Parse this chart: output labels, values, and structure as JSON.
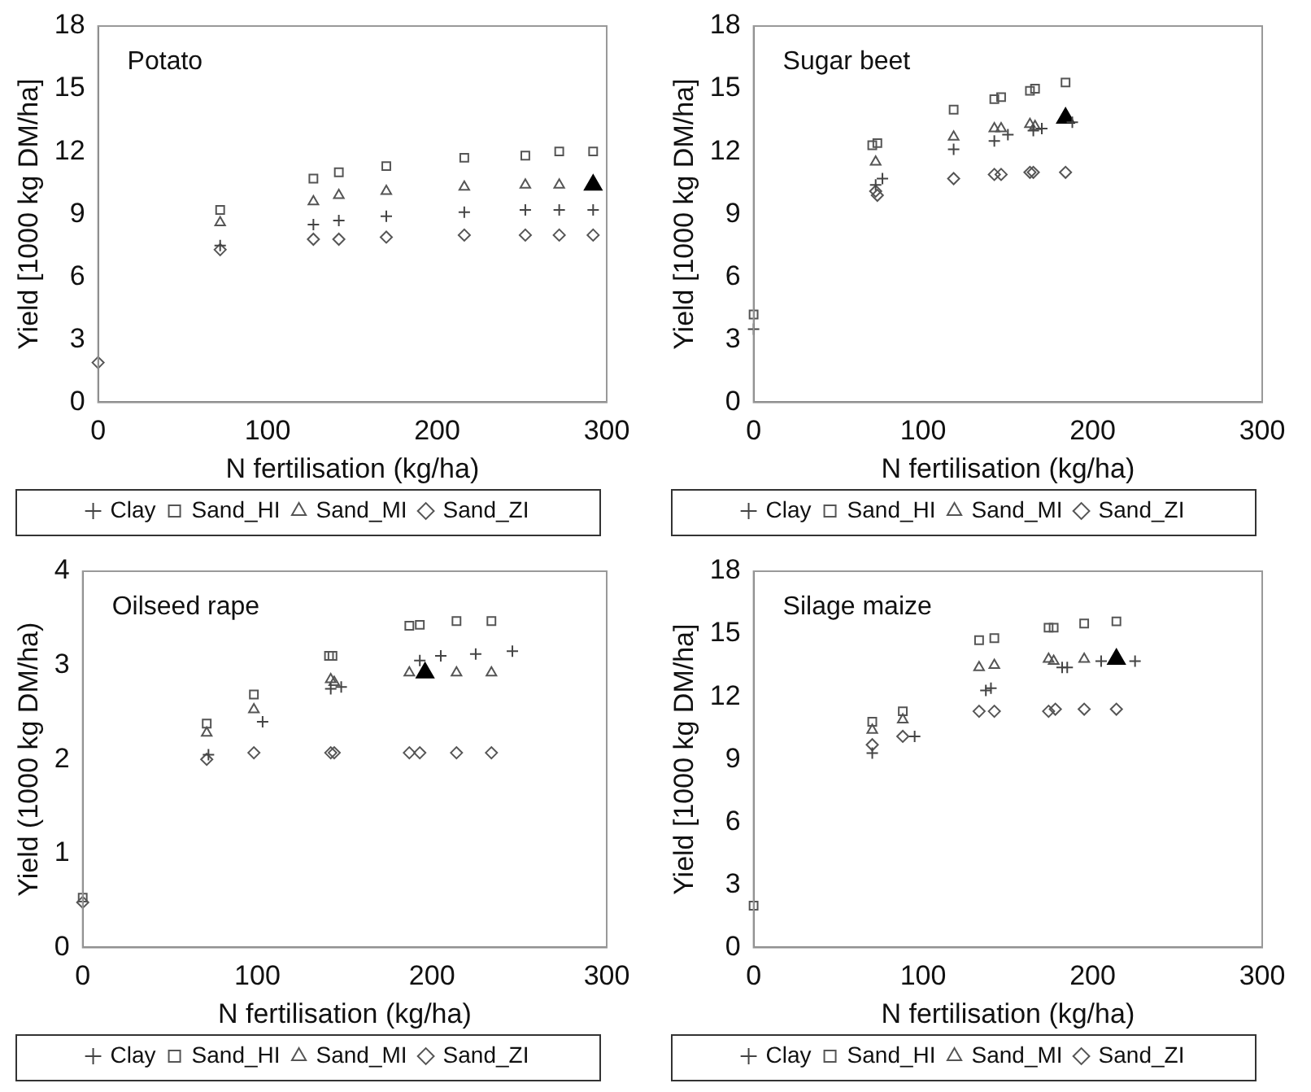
{
  "chart_data": [
    {
      "type": "scatter",
      "title": "Potato",
      "xlabel": "N fertilisation (kg/ha)",
      "ylabel": "Yield [1000 kg DM/ha]",
      "xlim": [
        0,
        300
      ],
      "xticks": [
        0,
        100,
        200,
        300
      ],
      "ylim": [
        0,
        18
      ],
      "yticks": [
        0,
        3,
        6,
        9,
        12,
        15,
        18
      ],
      "grid": false,
      "legend": "bottom",
      "series": [
        {
          "name": "Clay",
          "color": "#444444",
          "marker": "cross",
          "x": [
            72,
            127,
            142,
            170,
            216,
            252,
            272,
            292
          ],
          "values": [
            7.5,
            8.5,
            8.7,
            8.9,
            9.1,
            9.2,
            9.2,
            9.2
          ]
        },
        {
          "name": "Sand_HI",
          "color": "#555555",
          "marker": "square",
          "x": [
            72,
            127,
            142,
            170,
            216,
            252,
            272,
            292
          ],
          "values": [
            9.2,
            10.7,
            11.0,
            11.3,
            11.7,
            11.8,
            12.0,
            12.0
          ]
        },
        {
          "name": "Sand_MI",
          "color": "#555555",
          "marker": "triangle",
          "x": [
            72,
            127,
            142,
            170,
            216,
            252,
            272
          ],
          "values": [
            8.6,
            9.6,
            9.9,
            10.1,
            10.3,
            10.4,
            10.4
          ]
        },
        {
          "name": "Sand_ZI",
          "color": "#555555",
          "marker": "diamond",
          "x": [
            0,
            72,
            127,
            142,
            170,
            216,
            252,
            272,
            292
          ],
          "values": [
            1.9,
            7.3,
            7.8,
            7.8,
            7.9,
            8.0,
            8.0,
            8.0,
            8.0
          ]
        },
        {
          "color": "#000000",
          "marker": "triangle",
          "x": [
            292
          ],
          "values": [
            10.4
          ]
        }
      ]
    },
    {
      "type": "scatter",
      "title": "Sugar beet",
      "xlabel": "N fertilisation (kg/ha)",
      "ylabel": "Yield [1000 kg DM/ha]",
      "xlim": [
        0,
        300
      ],
      "xticks": [
        0,
        100,
        200,
        300
      ],
      "ylim": [
        0,
        18
      ],
      "yticks": [
        0,
        3,
        6,
        9,
        12,
        15,
        18
      ],
      "grid": false,
      "legend": "bottom",
      "series": [
        {
          "name": "Clay",
          "color": "#444444",
          "marker": "cross",
          "x": [
            0,
            72,
            76,
            118,
            142,
            150,
            165,
            170,
            188
          ],
          "values": [
            3.5,
            10.4,
            10.7,
            12.1,
            12.5,
            12.8,
            13.0,
            13.1,
            13.4
          ]
        },
        {
          "name": "Sand_HI",
          "color": "#555555",
          "marker": "square",
          "x": [
            0,
            70,
            73,
            118,
            142,
            146,
            163,
            166,
            184
          ],
          "values": [
            4.2,
            12.3,
            12.4,
            14.0,
            14.5,
            14.6,
            14.9,
            15.0,
            15.3
          ]
        },
        {
          "name": "Sand_MI",
          "color": "#555555",
          "marker": "triangle",
          "x": [
            72,
            118,
            142,
            146,
            163,
            166
          ],
          "values": [
            11.5,
            12.7,
            13.1,
            13.1,
            13.3,
            13.2
          ]
        },
        {
          "name": "Sand_ZI",
          "color": "#555555",
          "marker": "diamond",
          "x": [
            72,
            73,
            118,
            142,
            146,
            163,
            165,
            184
          ],
          "values": [
            10.1,
            9.9,
            10.7,
            10.9,
            10.9,
            11.0,
            11.0,
            11.0
          ]
        },
        {
          "color": "#000000",
          "marker": "triangle",
          "x": [
            184
          ],
          "values": [
            13.6
          ]
        }
      ]
    },
    {
      "type": "scatter",
      "title": "Oilseed rape",
      "xlabel": "N fertilisation (kg/ha)",
      "ylabel": "Yield (1000 kg DM/ha)",
      "xlim": [
        0,
        300
      ],
      "xticks": [
        0,
        100,
        200,
        300
      ],
      "ylim": [
        0,
        4
      ],
      "yticks": [
        0,
        1,
        2,
        3,
        4
      ],
      "grid": false,
      "legend": "bottom",
      "series": [
        {
          "name": "Clay",
          "color": "#444444",
          "marker": "cross",
          "x": [
            72,
            103,
            142,
            148,
            193,
            205,
            225,
            246
          ],
          "values": [
            2.05,
            2.4,
            2.75,
            2.77,
            3.05,
            3.1,
            3.12,
            3.15
          ]
        },
        {
          "name": "Sand_HI",
          "color": "#555555",
          "marker": "square",
          "x": [
            0,
            71,
            98,
            141,
            143,
            187,
            193,
            214,
            234
          ],
          "values": [
            0.53,
            2.38,
            2.69,
            3.1,
            3.1,
            3.42,
            3.43,
            3.47,
            3.47
          ]
        },
        {
          "name": "Sand_MI",
          "color": "#555555",
          "marker": "triangle",
          "x": [
            71,
            98,
            142,
            144,
            187,
            214,
            234
          ],
          "values": [
            2.28,
            2.53,
            2.85,
            2.82,
            2.92,
            2.92,
            2.92
          ]
        },
        {
          "name": "Sand_ZI",
          "color": "#555555",
          "marker": "diamond",
          "x": [
            0,
            71,
            98,
            142,
            144,
            187,
            193,
            214,
            234
          ],
          "values": [
            0.48,
            2.0,
            2.07,
            2.07,
            2.07,
            2.07,
            2.07,
            2.07,
            2.07
          ]
        },
        {
          "color": "#000000",
          "marker": "triangle",
          "x": [
            196
          ],
          "values": [
            2.92
          ]
        }
      ]
    },
    {
      "type": "scatter",
      "title": "Silage maize",
      "xlabel": "N fertilisation (kg/ha)",
      "ylabel": "Yield [1000 kg DM/ha]",
      "xlim": [
        0,
        300
      ],
      "xticks": [
        0,
        100,
        200,
        300
      ],
      "ylim": [
        0,
        18
      ],
      "yticks": [
        0,
        3,
        6,
        9,
        12,
        15,
        18
      ],
      "grid": false,
      "legend": "bottom",
      "series": [
        {
          "name": "Clay",
          "color": "#444444",
          "marker": "cross",
          "x": [
            70,
            95,
            137,
            140,
            182,
            185,
            205,
            225
          ],
          "values": [
            9.3,
            10.1,
            12.3,
            12.4,
            13.4,
            13.4,
            13.7,
            13.7
          ]
        },
        {
          "name": "Sand_HI",
          "color": "#555555",
          "marker": "square",
          "x": [
            0,
            70,
            88,
            133,
            142,
            174,
            177,
            195,
            214
          ],
          "values": [
            2.0,
            10.8,
            11.3,
            14.7,
            14.8,
            15.3,
            15.3,
            15.5,
            15.6
          ]
        },
        {
          "name": "Sand_MI",
          "color": "#555555",
          "marker": "triangle",
          "x": [
            70,
            88,
            133,
            142,
            174,
            177,
            195
          ],
          "values": [
            10.4,
            10.9,
            13.4,
            13.5,
            13.8,
            13.7,
            13.8
          ]
        },
        {
          "name": "Sand_ZI",
          "color": "#555555",
          "marker": "diamond",
          "x": [
            70,
            88,
            133,
            142,
            174,
            178,
            195,
            214
          ],
          "values": [
            9.7,
            10.1,
            11.3,
            11.3,
            11.3,
            11.4,
            11.4,
            11.4
          ]
        },
        {
          "color": "#000000",
          "marker": "triangle",
          "x": [
            214
          ],
          "values": [
            13.8
          ]
        }
      ]
    }
  ]
}
